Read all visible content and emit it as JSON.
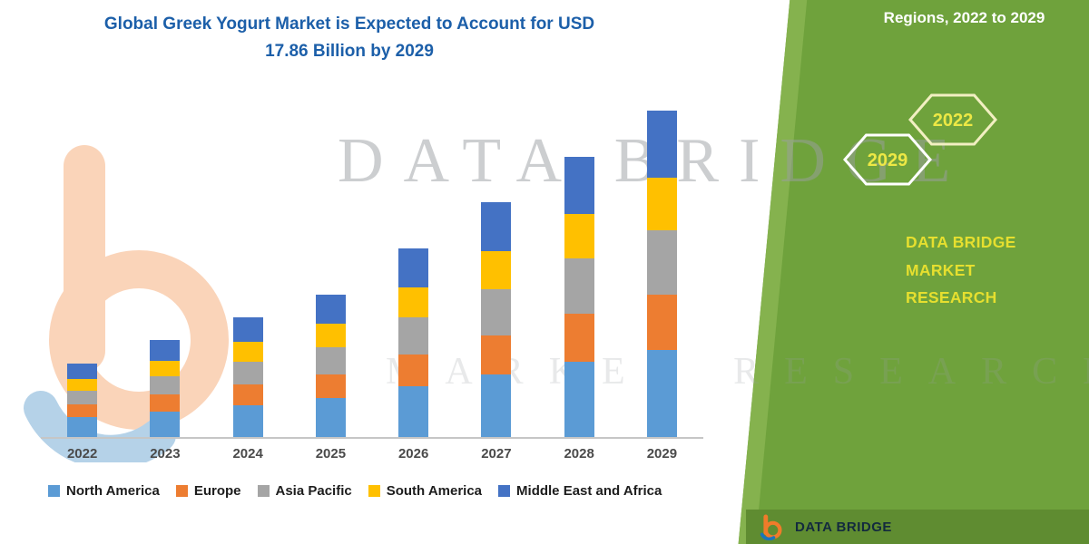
{
  "header": {
    "title_line1": "Global Greek Yogurt Market is Expected to Account for USD",
    "title_line2": "17.86 Billion by 2029"
  },
  "side_panel": {
    "top_text": "Regions, 2022 to 2029",
    "hexagon_labels": [
      "2029",
      "2022"
    ],
    "brand_line1": "DATA BRIDGE MARKET",
    "brand_line2": "RESEARCH"
  },
  "watermark": {
    "line1": "DATA BRIDGE",
    "line2": "MARKET RESEARCH"
  },
  "footer": {
    "logo_text": "DATA BRIDGE"
  },
  "colors": {
    "panel_green": "#6FA23C",
    "panel_green_light": "#85B24E",
    "panel_green_dark": "#5F8C31",
    "title_blue": "#1C5FA9",
    "accent_yellow": "#E8E232",
    "logo_orange": "#F07B2A",
    "logo_blue": "#1B75BB"
  },
  "chart_data": {
    "type": "bar",
    "stacked": true,
    "title": "Global Greek Yogurt Market is Expected to Account for USD 17.86 Billion by 2029",
    "unit": "USD Billion (values estimated from bar heights)",
    "categories": [
      "2022",
      "2023",
      "2024",
      "2025",
      "2026",
      "2027",
      "2028",
      "2029"
    ],
    "series": [
      {
        "name": "North America",
        "color": "#5B9BD5",
        "values": [
          1.11,
          1.41,
          1.76,
          2.11,
          2.77,
          3.42,
          4.12,
          4.78
        ]
      },
      {
        "name": "Europe",
        "color": "#ED7D31",
        "values": [
          0.7,
          0.91,
          1.11,
          1.31,
          1.76,
          2.16,
          2.62,
          3.02
        ]
      },
      {
        "name": "Asia Pacific",
        "color": "#A5A5A5",
        "values": [
          0.7,
          1.01,
          1.26,
          1.51,
          2.01,
          2.52,
          3.02,
          3.52
        ]
      },
      {
        "name": "South America",
        "color": "#FFC000",
        "values": [
          0.65,
          0.86,
          1.06,
          1.26,
          1.66,
          2.06,
          2.47,
          2.87
        ]
      },
      {
        "name": "Middle East and Africa",
        "color": "#4472C4",
        "values": [
          0.86,
          1.11,
          1.36,
          1.61,
          2.11,
          2.67,
          3.12,
          3.67
        ]
      }
    ],
    "totals": [
      4.02,
      5.3,
      6.55,
      7.8,
      10.31,
      12.83,
      15.35,
      17.86
    ],
    "ylim": [
      0,
      18
    ],
    "grid": false,
    "legend_position": "bottom"
  }
}
